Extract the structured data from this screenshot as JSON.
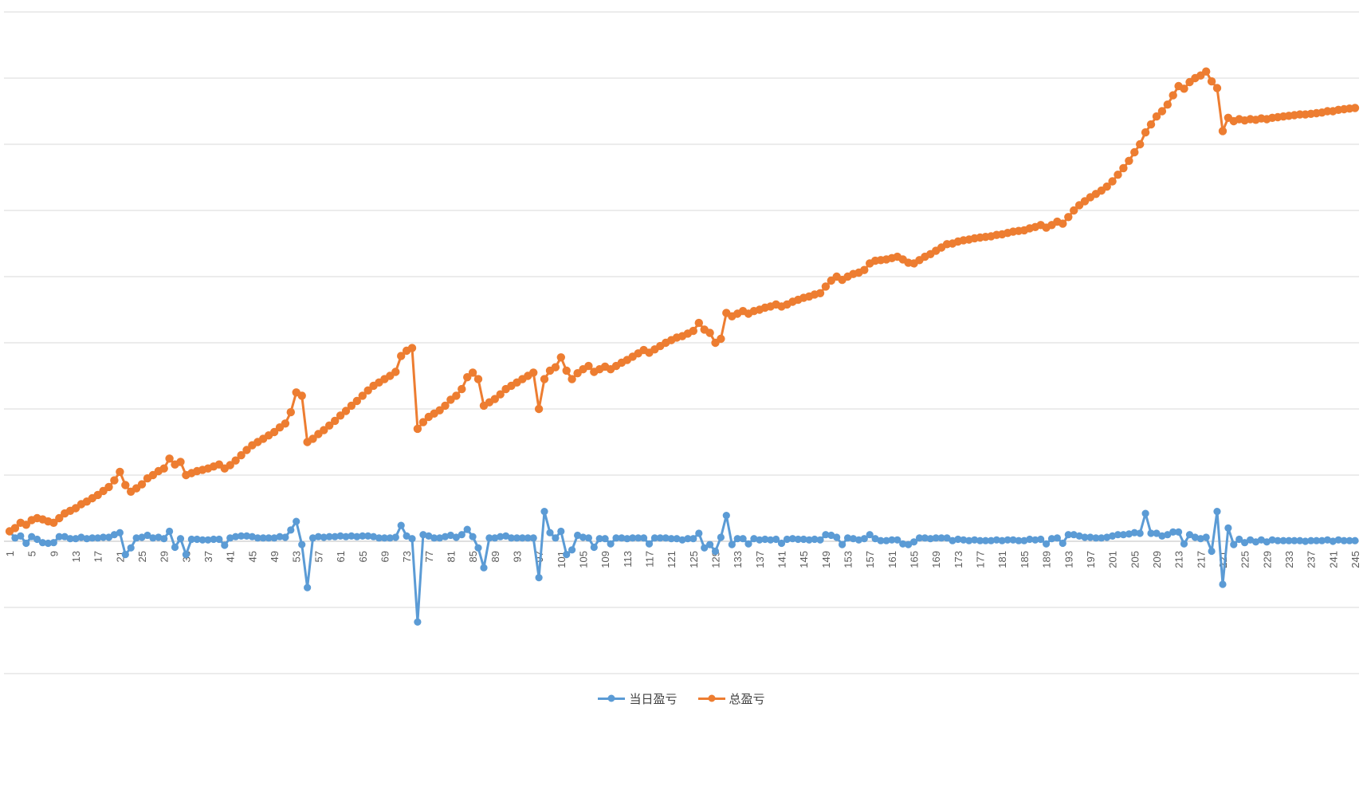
{
  "page": {
    "background_color": "#ffffff",
    "gridline_color": "#d9d9d9",
    "axis_line_color": "#bfbfbf",
    "tick_label_color": "#595959"
  },
  "chart_data": {
    "type": "line",
    "title": "",
    "grid": true,
    "legend_position": "bottom",
    "marker": "circle",
    "x": {
      "start": 1,
      "end": 245,
      "step": 1,
      "tick_step": 4,
      "tick_labels": [
        "1",
        "5",
        "9",
        "13",
        "17",
        "21",
        "25",
        "29",
        "33",
        "37",
        "41",
        "45",
        "49",
        "53",
        "57",
        "61",
        "65",
        "69",
        "73",
        "77",
        "81",
        "85",
        "89",
        "93",
        "97",
        "101",
        "105",
        "109",
        "113",
        "117",
        "121",
        "125",
        "129",
        "133",
        "137",
        "141",
        "145",
        "149",
        "153",
        "157",
        "161",
        "165",
        "169",
        "173",
        "177",
        "181",
        "185",
        "189",
        "193",
        "197",
        "201",
        "205",
        "209",
        "213",
        "217",
        "221",
        "225",
        "229",
        "233",
        "237",
        "241",
        "245"
      ]
    },
    "y": {
      "lim": [
        -2,
        8
      ],
      "gridline_step": 1,
      "tick_labels_visible": false
    },
    "series": [
      {
        "name": "当日盈亏",
        "color": "#5B9BD5",
        "marker": "circle",
        "values": [
          0.15,
          0.05,
          0.08,
          -0.03,
          0.07,
          0.03,
          -0.02,
          -0.03,
          -0.02,
          0.07,
          0.07,
          0.04,
          0.04,
          0.06,
          0.04,
          0.05,
          0.05,
          0.06,
          0.06,
          0.1,
          0.13,
          -0.2,
          -0.1,
          0.05,
          0.06,
          0.09,
          0.05,
          0.06,
          0.04,
          0.15,
          -0.09,
          0.04,
          -0.2,
          0.03,
          0.03,
          0.02,
          0.02,
          0.03,
          0.03,
          -0.06,
          0.05,
          0.07,
          0.08,
          0.08,
          0.07,
          0.05,
          0.05,
          0.05,
          0.05,
          0.07,
          0.06,
          0.17,
          0.3,
          -0.05,
          -0.7,
          0.05,
          0.07,
          0.06,
          0.07,
          0.07,
          0.08,
          0.07,
          0.08,
          0.07,
          0.08,
          0.08,
          0.07,
          0.05,
          0.05,
          0.05,
          0.06,
          0.24,
          0.08,
          0.04,
          -1.22,
          0.1,
          0.08,
          0.05,
          0.05,
          0.07,
          0.09,
          0.06,
          0.1,
          0.18,
          0.07,
          -0.1,
          -0.4,
          0.05,
          0.05,
          0.07,
          0.08,
          0.05,
          0.05,
          0.05,
          0.05,
          0.05,
          -0.55,
          0.45,
          0.13,
          0.05,
          0.15,
          -0.2,
          -0.13,
          0.09,
          0.06,
          0.05,
          -0.09,
          0.04,
          0.04,
          -0.04,
          0.05,
          0.05,
          0.04,
          0.05,
          0.05,
          0.05,
          -0.04,
          0.05,
          0.05,
          0.05,
          0.04,
          0.04,
          0.02,
          0.04,
          0.04,
          0.12,
          -0.1,
          -0.05,
          -0.15,
          0.06,
          0.39,
          -0.05,
          0.04,
          0.04,
          -0.04,
          0.04,
          0.02,
          0.03,
          0.02,
          0.03,
          -0.03,
          0.03,
          0.04,
          0.03,
          0.03,
          0.02,
          0.03,
          0.02,
          0.1,
          0.09,
          0.06,
          -0.05,
          0.05,
          0.04,
          0.02,
          0.04,
          0.1,
          0.04,
          0.01,
          0.01,
          0.02,
          0.02,
          -0.04,
          -0.05,
          -0.01,
          0.05,
          0.05,
          0.04,
          0.05,
          0.05,
          0.05,
          0.01,
          0.03,
          0.02,
          0.01,
          0.02,
          0.01,
          0.01,
          0.01,
          0.02,
          0.01,
          0.02,
          0.02,
          0.01,
          0.01,
          0.03,
          0.02,
          0.03,
          -0.04,
          0.04,
          0.05,
          -0.03,
          0.1,
          0.1,
          0.08,
          0.06,
          0.06,
          0.05,
          0.05,
          0.06,
          0.08,
          0.1,
          0.1,
          0.11,
          0.13,
          0.12,
          0.42,
          0.12,
          0.12,
          0.08,
          0.1,
          0.14,
          0.14,
          -0.04,
          0.1,
          0.06,
          0.04,
          0.06,
          -0.15,
          0.45,
          -0.65,
          0.2,
          -0.05,
          0.03,
          -0.02,
          0.02,
          -0.01,
          0.02,
          -0.01,
          0.02,
          0.01,
          0.01,
          0.01,
          0.01,
          0.01,
          0.0,
          0.01,
          0.01,
          0.01,
          0.02,
          0.0,
          0.02,
          0.01,
          0.01,
          0.01
        ]
      },
      {
        "name": "总盈亏",
        "color": "#ED7D31",
        "marker": "circle",
        "values": [
          0.15,
          0.2,
          0.28,
          0.25,
          0.32,
          0.35,
          0.33,
          0.3,
          0.28,
          0.35,
          0.42,
          0.46,
          0.5,
          0.56,
          0.6,
          0.65,
          0.7,
          0.76,
          0.82,
          0.92,
          1.05,
          0.85,
          0.75,
          0.8,
          0.86,
          0.95,
          1.0,
          1.06,
          1.1,
          1.25,
          1.16,
          1.2,
          1.0,
          1.03,
          1.06,
          1.08,
          1.1,
          1.13,
          1.16,
          1.1,
          1.15,
          1.22,
          1.3,
          1.38,
          1.45,
          1.5,
          1.55,
          1.6,
          1.65,
          1.72,
          1.78,
          1.95,
          2.25,
          2.2,
          1.5,
          1.55,
          1.62,
          1.68,
          1.75,
          1.82,
          1.9,
          1.97,
          2.05,
          2.12,
          2.2,
          2.28,
          2.35,
          2.4,
          2.45,
          2.5,
          2.56,
          2.8,
          2.88,
          2.92,
          1.7,
          1.8,
          1.88,
          1.93,
          1.98,
          2.05,
          2.14,
          2.2,
          2.3,
          2.48,
          2.55,
          2.45,
          2.05,
          2.1,
          2.15,
          2.22,
          2.3,
          2.35,
          2.4,
          2.45,
          2.5,
          2.55,
          2.0,
          2.45,
          2.58,
          2.63,
          2.78,
          2.58,
          2.45,
          2.54,
          2.6,
          2.65,
          2.56,
          2.6,
          2.64,
          2.6,
          2.65,
          2.7,
          2.74,
          2.79,
          2.84,
          2.89,
          2.85,
          2.9,
          2.95,
          3.0,
          3.04,
          3.08,
          3.1,
          3.14,
          3.18,
          3.3,
          3.2,
          3.15,
          3.0,
          3.06,
          3.45,
          3.4,
          3.44,
          3.48,
          3.44,
          3.48,
          3.5,
          3.53,
          3.55,
          3.58,
          3.55,
          3.58,
          3.62,
          3.65,
          3.68,
          3.7,
          3.73,
          3.75,
          3.85,
          3.94,
          4.0,
          3.95,
          4.0,
          4.04,
          4.06,
          4.1,
          4.2,
          4.24,
          4.25,
          4.26,
          4.28,
          4.3,
          4.26,
          4.21,
          4.2,
          4.25,
          4.3,
          4.34,
          4.39,
          4.44,
          4.49,
          4.5,
          4.53,
          4.55,
          4.56,
          4.58,
          4.59,
          4.6,
          4.61,
          4.63,
          4.64,
          4.66,
          4.68,
          4.69,
          4.7,
          4.73,
          4.75,
          4.78,
          4.74,
          4.78,
          4.83,
          4.8,
          4.9,
          5.0,
          5.08,
          5.14,
          5.2,
          5.25,
          5.3,
          5.36,
          5.44,
          5.54,
          5.64,
          5.75,
          5.88,
          6.0,
          6.18,
          6.3,
          6.42,
          6.5,
          6.6,
          6.74,
          6.88,
          6.84,
          6.94,
          7.0,
          7.04,
          7.1,
          6.95,
          6.85,
          6.2,
          6.4,
          6.35,
          6.38,
          6.36,
          6.38,
          6.37,
          6.39,
          6.38,
          6.4,
          6.41,
          6.42,
          6.43,
          6.44,
          6.45,
          6.45,
          6.46,
          6.47,
          6.48,
          6.5,
          6.5,
          6.52,
          6.53,
          6.54,
          6.55
        ]
      }
    ]
  }
}
